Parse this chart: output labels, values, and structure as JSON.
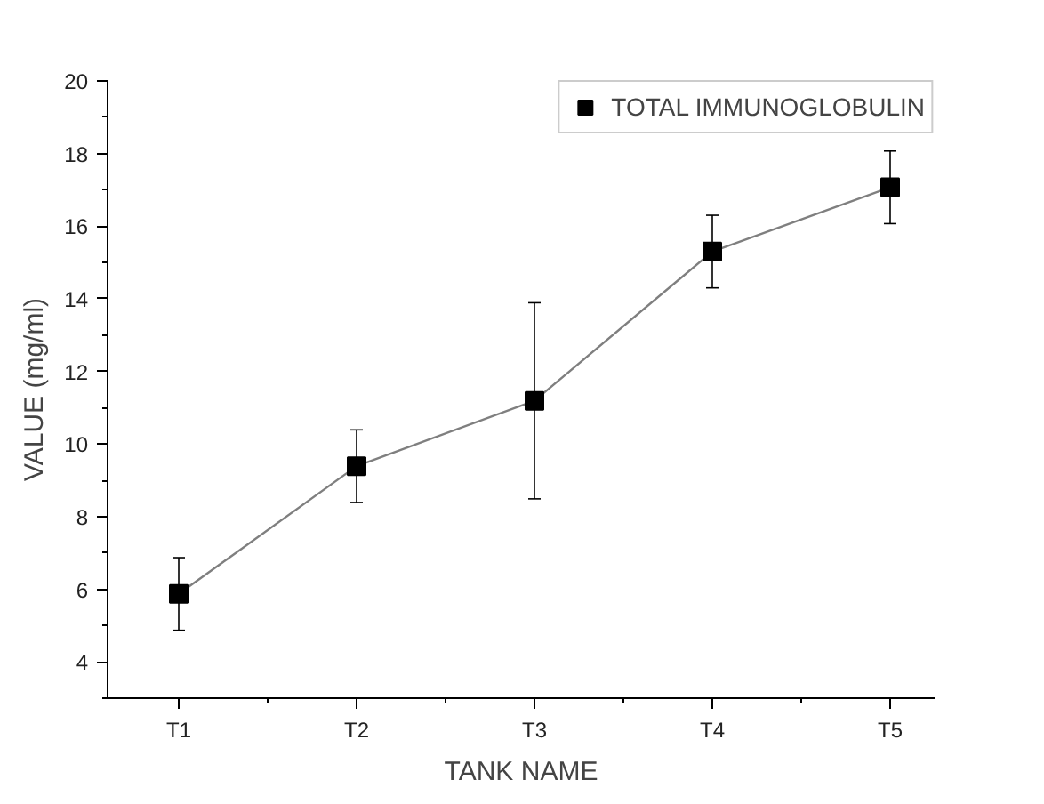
{
  "chart_data": {
    "type": "line",
    "xlabel": "TANK NAME",
    "ylabel": "VALUE (mg/ml)",
    "categories": [
      "T1",
      "T2",
      "T3",
      "T4",
      "T5"
    ],
    "series": [
      {
        "name": "TOTAL IMMUNOGLOBULIN",
        "color": "#000000",
        "values": [
          5.87,
          9.39,
          11.19,
          15.3,
          17.07
        ],
        "errors": [
          1.0,
          1.0,
          2.7,
          1.0,
          1.0
        ]
      }
    ],
    "ylim": [
      3,
      20
    ],
    "yticks": [
      4,
      6,
      8,
      10,
      12,
      14,
      16,
      18,
      20
    ],
    "marker": "square",
    "line_style": "solid",
    "grid": false,
    "legend": "top right"
  }
}
